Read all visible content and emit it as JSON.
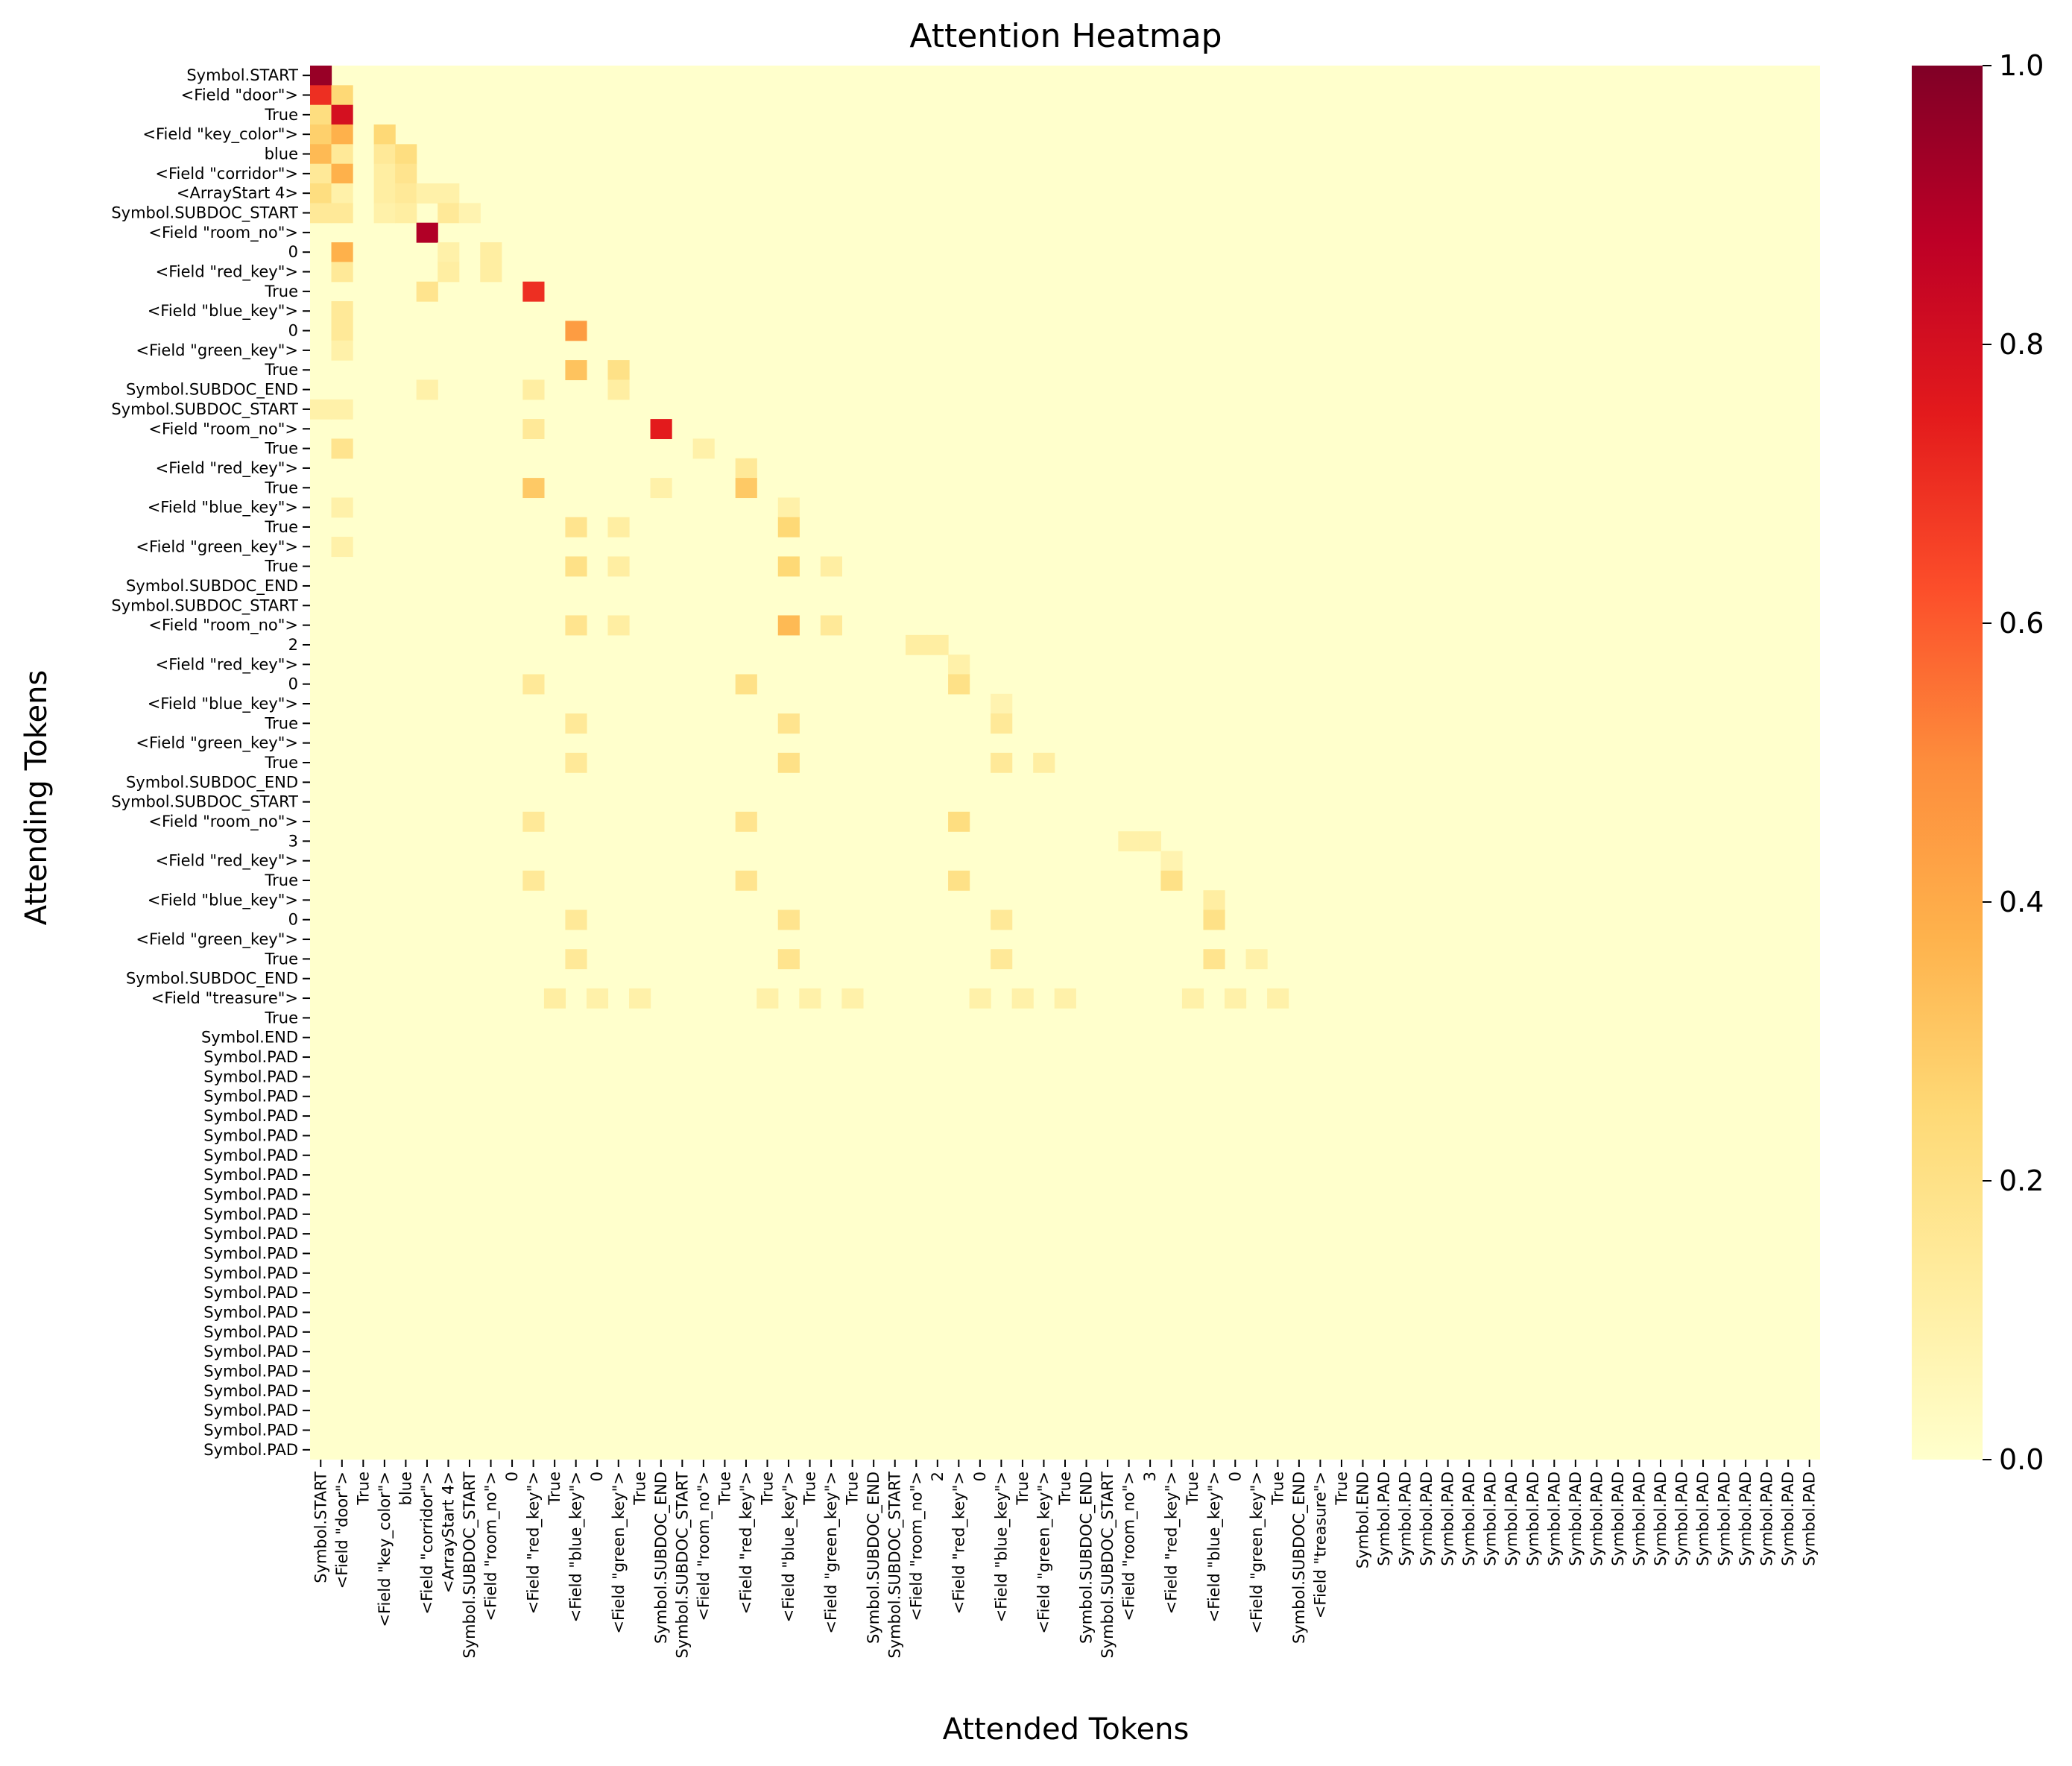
{
  "chart_data": {
    "type": "heatmap",
    "title": "Attention Heatmap",
    "xlabel": "Attended Tokens",
    "ylabel": "Attending Tokens",
    "colormap": "YlOrRd",
    "color_range": [
      0,
      1
    ],
    "colorbar_ticks": [
      "0.0",
      "0.2",
      "0.4",
      "0.6",
      "0.8",
      "1.0"
    ],
    "colors": {
      "low": "#ffffcc",
      "mid": "#fd8d3c",
      "high": "#800026"
    },
    "x_tokens": [
      "Symbol.START",
      "<Field \"door\">",
      "True",
      "<Field \"key_color\">",
      "blue",
      "<Field \"corridor\">",
      "<ArrayStart 4>",
      "Symbol.SUBDOC_START",
      "<Field \"room_no\">",
      "0",
      "<Field \"red_key\">",
      "True",
      "<Field \"blue_key\">",
      "0",
      "<Field \"green_key\">",
      "True",
      "Symbol.SUBDOC_END",
      "Symbol.SUBDOC_START",
      "<Field \"room_no\">",
      "True",
      "<Field \"red_key\">",
      "True",
      "<Field \"blue_key\">",
      "True",
      "<Field \"green_key\">",
      "True",
      "Symbol.SUBDOC_END",
      "Symbol.SUBDOC_START",
      "<Field \"room_no\">",
      "2",
      "<Field \"red_key\">",
      "0",
      "<Field \"blue_key\">",
      "True",
      "<Field \"green_key\">",
      "True",
      "Symbol.SUBDOC_END",
      "Symbol.SUBDOC_START",
      "<Field \"room_no\">",
      "3",
      "<Field \"red_key\">",
      "True",
      "<Field \"blue_key\">",
      "0",
      "<Field \"green_key\">",
      "True",
      "Symbol.SUBDOC_END",
      "<Field \"treasure\">",
      "True",
      "Symbol.END",
      "Symbol.PAD",
      "Symbol.PAD",
      "Symbol.PAD",
      "Symbol.PAD",
      "Symbol.PAD",
      "Symbol.PAD",
      "Symbol.PAD",
      "Symbol.PAD",
      "Symbol.PAD",
      "Symbol.PAD",
      "Symbol.PAD",
      "Symbol.PAD",
      "Symbol.PAD",
      "Symbol.PAD",
      "Symbol.PAD",
      "Symbol.PAD",
      "Symbol.PAD",
      "Symbol.PAD",
      "Symbol.PAD",
      "Symbol.PAD",
      "Symbol.PAD"
    ],
    "y_tokens": [
      "Symbol.START",
      "<Field \"door\">",
      "True",
      "<Field \"key_color\">",
      "blue",
      "<Field \"corridor\">",
      "<ArrayStart 4>",
      "Symbol.SUBDOC_START",
      "<Field \"room_no\">",
      "0",
      "<Field \"red_key\">",
      "True",
      "<Field \"blue_key\">",
      "0",
      "<Field \"green_key\">",
      "True",
      "Symbol.SUBDOC_END",
      "Symbol.SUBDOC_START",
      "<Field \"room_no\">",
      "True",
      "<Field \"red_key\">",
      "True",
      "<Field \"blue_key\">",
      "True",
      "<Field \"green_key\">",
      "True",
      "Symbol.SUBDOC_END",
      "Symbol.SUBDOC_START",
      "<Field \"room_no\">",
      "2",
      "<Field \"red_key\">",
      "0",
      "<Field \"blue_key\">",
      "True",
      "<Field \"green_key\">",
      "True",
      "Symbol.SUBDOC_END",
      "Symbol.SUBDOC_START",
      "<Field \"room_no\">",
      "3",
      "<Field \"red_key\">",
      "True",
      "<Field \"blue_key\">",
      "0",
      "<Field \"green_key\">",
      "True",
      "Symbol.SUBDOC_END",
      "<Field \"treasure\">",
      "True",
      "Symbol.END",
      "Symbol.PAD",
      "Symbol.PAD",
      "Symbol.PAD",
      "Symbol.PAD",
      "Symbol.PAD",
      "Symbol.PAD",
      "Symbol.PAD",
      "Symbol.PAD",
      "Symbol.PAD",
      "Symbol.PAD",
      "Symbol.PAD",
      "Symbol.PAD",
      "Symbol.PAD",
      "Symbol.PAD",
      "Symbol.PAD",
      "Symbol.PAD",
      "Symbol.PAD",
      "Symbol.PAD",
      "Symbol.PAD",
      "Symbol.PAD",
      "Symbol.PAD"
    ],
    "base_value": 0.0,
    "highlights": [
      {
        "row": 0,
        "col": 0,
        "value": 0.95
      },
      {
        "row": 1,
        "col": 0,
        "value": 0.7
      },
      {
        "row": 1,
        "col": 1,
        "value": 0.25
      },
      {
        "row": 2,
        "col": 0,
        "value": 0.22
      },
      {
        "row": 2,
        "col": 1,
        "value": 0.8
      },
      {
        "row": 3,
        "col": 0,
        "value": 0.28
      },
      {
        "row": 3,
        "col": 1,
        "value": 0.38
      },
      {
        "row": 3,
        "col": 3,
        "value": 0.25
      },
      {
        "row": 4,
        "col": 0,
        "value": 0.35
      },
      {
        "row": 4,
        "col": 1,
        "value": 0.15
      },
      {
        "row": 4,
        "col": 3,
        "value": 0.15
      },
      {
        "row": 4,
        "col": 4,
        "value": 0.22
      },
      {
        "row": 5,
        "col": 0,
        "value": 0.15
      },
      {
        "row": 5,
        "col": 1,
        "value": 0.38
      },
      {
        "row": 5,
        "col": 3,
        "value": 0.12
      },
      {
        "row": 5,
        "col": 4,
        "value": 0.18
      },
      {
        "row": 6,
        "col": 0,
        "value": 0.22
      },
      {
        "row": 6,
        "col": 1,
        "value": 0.1
      },
      {
        "row": 6,
        "col": 3,
        "value": 0.12
      },
      {
        "row": 6,
        "col": 4,
        "value": 0.15
      },
      {
        "row": 6,
        "col": 5,
        "value": 0.1
      },
      {
        "row": 6,
        "col": 6,
        "value": 0.1
      },
      {
        "row": 7,
        "col": 0,
        "value": 0.15
      },
      {
        "row": 7,
        "col": 1,
        "value": 0.15
      },
      {
        "row": 7,
        "col": 3,
        "value": 0.1
      },
      {
        "row": 7,
        "col": 4,
        "value": 0.12
      },
      {
        "row": 7,
        "col": 6,
        "value": 0.15
      },
      {
        "row": 7,
        "col": 7,
        "value": 0.08
      },
      {
        "row": 8,
        "col": 5,
        "value": 0.9
      },
      {
        "row": 9,
        "col": 1,
        "value": 0.38
      },
      {
        "row": 9,
        "col": 6,
        "value": 0.1
      },
      {
        "row": 9,
        "col": 8,
        "value": 0.12
      },
      {
        "row": 10,
        "col": 1,
        "value": 0.15
      },
      {
        "row": 10,
        "col": 6,
        "value": 0.12
      },
      {
        "row": 10,
        "col": 8,
        "value": 0.12
      },
      {
        "row": 11,
        "col": 5,
        "value": 0.18
      },
      {
        "row": 11,
        "col": 10,
        "value": 0.7
      },
      {
        "row": 12,
        "col": 1,
        "value": 0.15
      },
      {
        "row": 13,
        "col": 1,
        "value": 0.15
      },
      {
        "row": 13,
        "col": 12,
        "value": 0.45
      },
      {
        "row": 14,
        "col": 1,
        "value": 0.1
      },
      {
        "row": 15,
        "col": 12,
        "value": 0.32
      },
      {
        "row": 15,
        "col": 14,
        "value": 0.2
      },
      {
        "row": 16,
        "col": 5,
        "value": 0.1
      },
      {
        "row": 16,
        "col": 10,
        "value": 0.12
      },
      {
        "row": 16,
        "col": 14,
        "value": 0.12
      },
      {
        "row": 17,
        "col": 0,
        "value": 0.1
      },
      {
        "row": 17,
        "col": 1,
        "value": 0.1
      },
      {
        "row": 18,
        "col": 10,
        "value": 0.15
      },
      {
        "row": 18,
        "col": 16,
        "value": 0.75
      },
      {
        "row": 19,
        "col": 1,
        "value": 0.18
      },
      {
        "row": 19,
        "col": 18,
        "value": 0.1
      },
      {
        "row": 20,
        "col": 20,
        "value": 0.15
      },
      {
        "row": 21,
        "col": 10,
        "value": 0.3
      },
      {
        "row": 21,
        "col": 16,
        "value": 0.1
      },
      {
        "row": 21,
        "col": 20,
        "value": 0.3
      },
      {
        "row": 22,
        "col": 1,
        "value": 0.1
      },
      {
        "row": 22,
        "col": 22,
        "value": 0.1
      },
      {
        "row": 23,
        "col": 12,
        "value": 0.18
      },
      {
        "row": 23,
        "col": 14,
        "value": 0.12
      },
      {
        "row": 23,
        "col": 22,
        "value": 0.25
      },
      {
        "row": 24,
        "col": 1,
        "value": 0.1
      },
      {
        "row": 25,
        "col": 12,
        "value": 0.2
      },
      {
        "row": 25,
        "col": 14,
        "value": 0.12
      },
      {
        "row": 25,
        "col": 22,
        "value": 0.25
      },
      {
        "row": 25,
        "col": 24,
        "value": 0.12
      },
      {
        "row": 28,
        "col": 12,
        "value": 0.18
      },
      {
        "row": 28,
        "col": 14,
        "value": 0.12
      },
      {
        "row": 28,
        "col": 22,
        "value": 0.35
      },
      {
        "row": 28,
        "col": 24,
        "value": 0.15
      },
      {
        "row": 29,
        "col": 28,
        "value": 0.12
      },
      {
        "row": 29,
        "col": 29,
        "value": 0.12
      },
      {
        "row": 30,
        "col": 30,
        "value": 0.1
      },
      {
        "row": 31,
        "col": 10,
        "value": 0.15
      },
      {
        "row": 31,
        "col": 20,
        "value": 0.2
      },
      {
        "row": 31,
        "col": 30,
        "value": 0.2
      },
      {
        "row": 32,
        "col": 32,
        "value": 0.08
      },
      {
        "row": 33,
        "col": 12,
        "value": 0.15
      },
      {
        "row": 33,
        "col": 22,
        "value": 0.18
      },
      {
        "row": 33,
        "col": 32,
        "value": 0.15
      },
      {
        "row": 35,
        "col": 12,
        "value": 0.15
      },
      {
        "row": 35,
        "col": 22,
        "value": 0.2
      },
      {
        "row": 35,
        "col": 32,
        "value": 0.15
      },
      {
        "row": 35,
        "col": 34,
        "value": 0.12
      },
      {
        "row": 38,
        "col": 10,
        "value": 0.15
      },
      {
        "row": 38,
        "col": 20,
        "value": 0.18
      },
      {
        "row": 38,
        "col": 30,
        "value": 0.22
      },
      {
        "row": 39,
        "col": 38,
        "value": 0.1
      },
      {
        "row": 39,
        "col": 39,
        "value": 0.1
      },
      {
        "row": 40,
        "col": 40,
        "value": 0.08
      },
      {
        "row": 41,
        "col": 10,
        "value": 0.15
      },
      {
        "row": 41,
        "col": 20,
        "value": 0.18
      },
      {
        "row": 41,
        "col": 30,
        "value": 0.2
      },
      {
        "row": 41,
        "col": 40,
        "value": 0.2
      },
      {
        "row": 42,
        "col": 42,
        "value": 0.12
      },
      {
        "row": 43,
        "col": 12,
        "value": 0.15
      },
      {
        "row": 43,
        "col": 22,
        "value": 0.18
      },
      {
        "row": 43,
        "col": 32,
        "value": 0.15
      },
      {
        "row": 43,
        "col": 42,
        "value": 0.2
      },
      {
        "row": 45,
        "col": 12,
        "value": 0.15
      },
      {
        "row": 45,
        "col": 22,
        "value": 0.18
      },
      {
        "row": 45,
        "col": 32,
        "value": 0.15
      },
      {
        "row": 45,
        "col": 42,
        "value": 0.18
      },
      {
        "row": 45,
        "col": 44,
        "value": 0.1
      },
      {
        "row": 47,
        "col": 11,
        "value": 0.12
      },
      {
        "row": 47,
        "col": 13,
        "value": 0.1
      },
      {
        "row": 47,
        "col": 15,
        "value": 0.1
      },
      {
        "row": 47,
        "col": 21,
        "value": 0.1
      },
      {
        "row": 47,
        "col": 23,
        "value": 0.1
      },
      {
        "row": 47,
        "col": 25,
        "value": 0.1
      },
      {
        "row": 47,
        "col": 31,
        "value": 0.1
      },
      {
        "row": 47,
        "col": 33,
        "value": 0.1
      },
      {
        "row": 47,
        "col": 35,
        "value": 0.1
      },
      {
        "row": 47,
        "col": 41,
        "value": 0.1
      },
      {
        "row": 47,
        "col": 43,
        "value": 0.1
      },
      {
        "row": 47,
        "col": 45,
        "value": 0.1
      }
    ]
  }
}
